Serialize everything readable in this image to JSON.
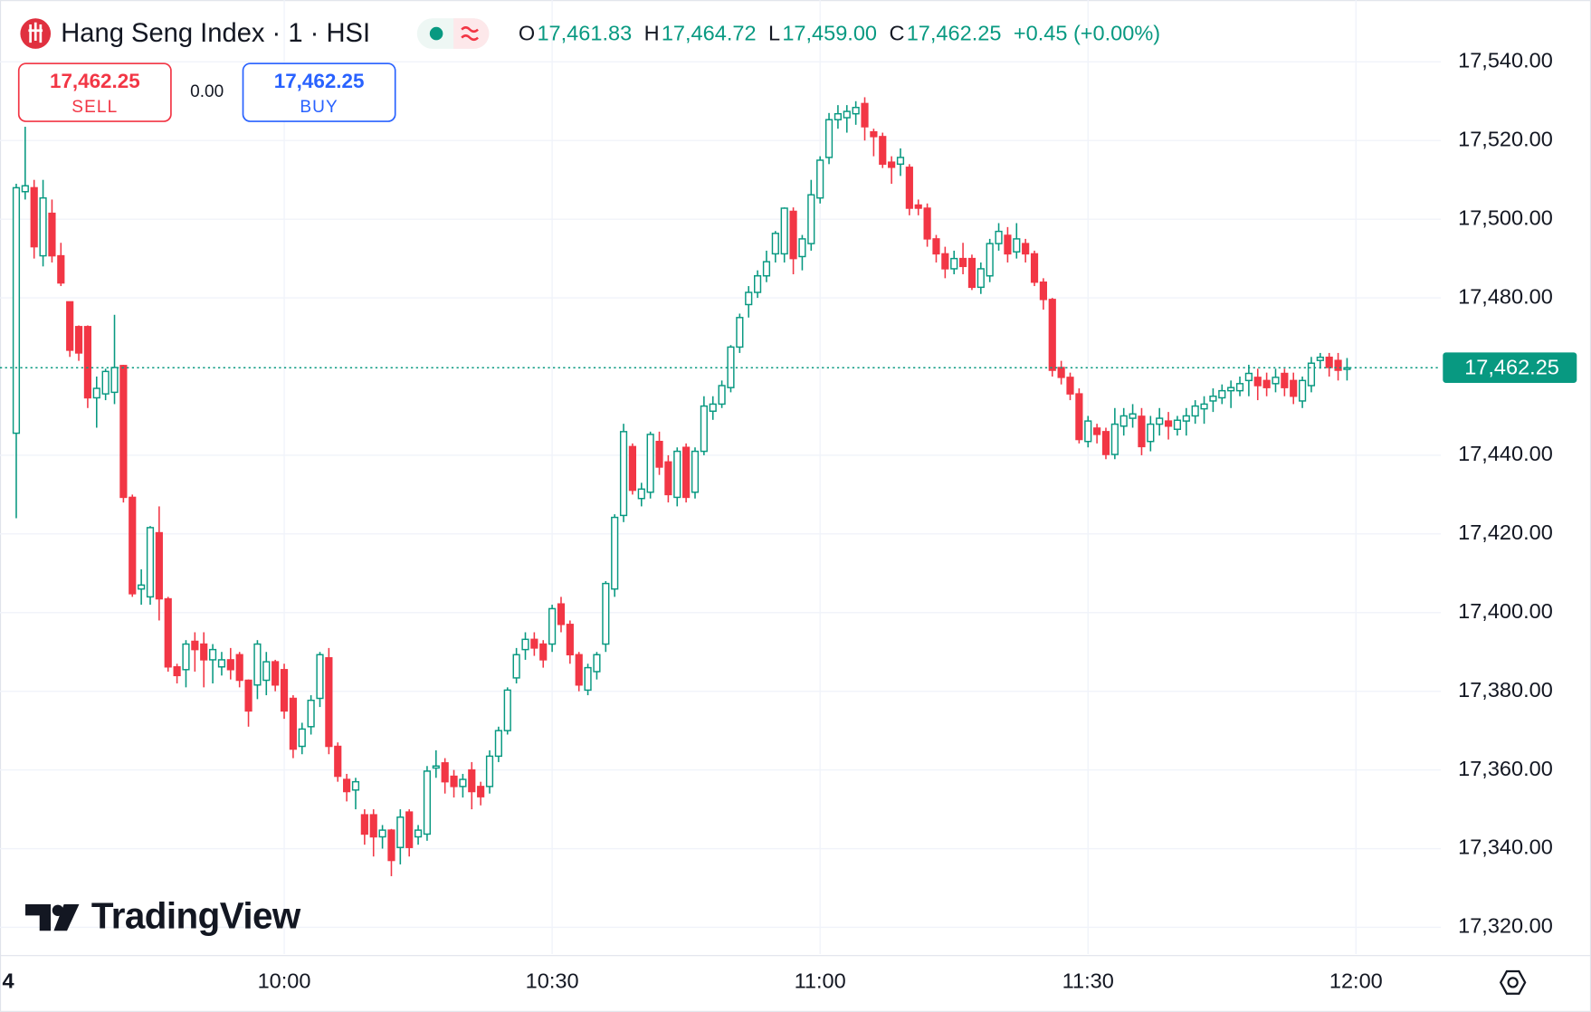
{
  "chart_data": {
    "type": "candlestick",
    "title": "Hang Seng Index · 1 · HSI",
    "ohlc": [
      {
        "key": "O",
        "value": "17,461.83"
      },
      {
        "key": "H",
        "value": "17,464.72"
      },
      {
        "key": "L",
        "value": "17,459.00"
      },
      {
        "key": "C",
        "value": "17,462.25"
      }
    ],
    "change": "+0.45 (+0.00%)",
    "sell": {
      "price": "17,462.25",
      "label": "SELL"
    },
    "spread": "0.00",
    "buy": {
      "price": "17,462.25",
      "label": "BUY"
    },
    "watermark": "TradingView",
    "up_color": "#089981",
    "down_color": "#f23645",
    "grid": true,
    "last_price": {
      "value": 17462.25,
      "label": "17,462.25"
    },
    "ylim": [
      17313.2,
      17555.7
    ],
    "yticks": [
      {
        "value": 17540,
        "label": "17,540.00"
      },
      {
        "value": 17520,
        "label": "17,520.00"
      },
      {
        "value": 17500,
        "label": "17,500.00"
      },
      {
        "value": 17480,
        "label": "17,480.00"
      },
      {
        "value": 17440,
        "label": "17,440.00"
      },
      {
        "value": 17420,
        "label": "17,420.00"
      },
      {
        "value": 17400,
        "label": "17,400.00"
      },
      {
        "value": 17380,
        "label": "17,380.00"
      },
      {
        "value": 17360,
        "label": "17,360.00"
      },
      {
        "value": 17340,
        "label": "17,340.00"
      },
      {
        "value": 17320,
        "label": "17,320.00"
      }
    ],
    "xlim": [
      -1.82,
      159.5
    ],
    "xticks": [
      {
        "value": -0.9,
        "label": "4"
      },
      {
        "value": 30,
        "label": "10:00"
      },
      {
        "value": 60,
        "label": "10:30"
      },
      {
        "value": 90,
        "label": "11:00"
      },
      {
        "value": 120,
        "label": "11:30"
      },
      {
        "value": 150,
        "label": "12:00"
      }
    ],
    "candles": [
      [
        17445.6,
        17509,
        17424,
        17508
      ],
      [
        17507,
        17523.5,
        17505,
        17508.5
      ],
      [
        17508,
        17510,
        17490,
        17493
      ],
      [
        17490.7,
        17510,
        17488,
        17505.4
      ],
      [
        17501.5,
        17505,
        17489,
        17490.7
      ],
      [
        17490.7,
        17494,
        17483,
        17483.8
      ],
      [
        17479,
        17479,
        17465,
        17466.7
      ],
      [
        17472.7,
        17473,
        17464,
        17466
      ],
      [
        17472.7,
        17473,
        17452,
        17454.6
      ],
      [
        17454.6,
        17460,
        17447,
        17457
      ],
      [
        17455.6,
        17462,
        17454,
        17461.3
      ],
      [
        17456,
        17475.7,
        17453,
        17462.3
      ],
      [
        17462.8,
        17463,
        17428,
        17429.3
      ],
      [
        17429.3,
        17430,
        17404,
        17404.8
      ],
      [
        17406,
        17411,
        17402,
        17407
      ],
      [
        17404,
        17422,
        17402,
        17421.6
      ],
      [
        17420.3,
        17427,
        17398,
        17403.5
      ],
      [
        17403.5,
        17404,
        17385,
        17386.2
      ],
      [
        17386.2,
        17387,
        17382,
        17384
      ],
      [
        17385.5,
        17393,
        17381,
        17392
      ],
      [
        17392.7,
        17395,
        17385,
        17390.6
      ],
      [
        17392,
        17395,
        17381,
        17388
      ],
      [
        17388,
        17392,
        17382,
        17390.6
      ],
      [
        17386.2,
        17390,
        17384,
        17388
      ],
      [
        17388,
        17391,
        17383,
        17385.5
      ],
      [
        17389.3,
        17390,
        17381,
        17382.8
      ],
      [
        17382.8,
        17383,
        17371,
        17375
      ],
      [
        17381.6,
        17393,
        17378,
        17392
      ],
      [
        17382.8,
        17390,
        17379,
        17387.5
      ],
      [
        17387.5,
        17388,
        17380,
        17381.6
      ],
      [
        17385.5,
        17387,
        17373,
        17375
      ],
      [
        17378.2,
        17379,
        17363,
        17365.3
      ],
      [
        17366,
        17372,
        17364,
        17370.4
      ],
      [
        17371,
        17379,
        17369,
        17377.7
      ],
      [
        17378.2,
        17390,
        17376,
        17389.3
      ],
      [
        17388.5,
        17391,
        17364,
        17366
      ],
      [
        17366,
        17367,
        17357,
        17358.4
      ],
      [
        17357.6,
        17359,
        17352,
        17354.5
      ],
      [
        17354.9,
        17358,
        17350,
        17357
      ],
      [
        17348.6,
        17350,
        17341,
        17343.7
      ],
      [
        17348.6,
        17350,
        17338,
        17343
      ],
      [
        17343,
        17346,
        17340,
        17344.7
      ],
      [
        17344.7,
        17345,
        17333,
        17337
      ],
      [
        17340.3,
        17350,
        17336,
        17348
      ],
      [
        17349.3,
        17350,
        17338,
        17340.3
      ],
      [
        17343,
        17346,
        17341,
        17344.7
      ],
      [
        17343.7,
        17361,
        17342,
        17359.7
      ],
      [
        17360.5,
        17365,
        17358,
        17361
      ],
      [
        17361.8,
        17363,
        17354,
        17357
      ],
      [
        17358.4,
        17360,
        17353,
        17355.8
      ],
      [
        17355.8,
        17359,
        17353,
        17357.6
      ],
      [
        17360,
        17362,
        17350,
        17354.5
      ],
      [
        17355.8,
        17357,
        17351,
        17353.2
      ],
      [
        17355.8,
        17365,
        17354,
        17363.5
      ],
      [
        17363.5,
        17371,
        17362,
        17370
      ],
      [
        17370,
        17381,
        17369,
        17380.3
      ],
      [
        17383.4,
        17391,
        17382,
        17389.3
      ],
      [
        17390.6,
        17395,
        17388,
        17393.2
      ],
      [
        17393.2,
        17395,
        17389,
        17391
      ],
      [
        17392,
        17393,
        17386,
        17388
      ],
      [
        17392,
        17402,
        17390,
        17401
      ],
      [
        17402.2,
        17404,
        17395,
        17397
      ],
      [
        17397,
        17398,
        17387,
        17389.3
      ],
      [
        17389.3,
        17390,
        17380,
        17381.6
      ],
      [
        17380.3,
        17387,
        17379,
        17386
      ],
      [
        17385,
        17390,
        17383,
        17389.3
      ],
      [
        17392,
        17408,
        17390,
        17407.4
      ],
      [
        17406,
        17425,
        17404,
        17424.2
      ],
      [
        17424.7,
        17448,
        17423,
        17446
      ],
      [
        17442.2,
        17443,
        17430,
        17431.1
      ],
      [
        17429,
        17433,
        17427,
        17431.4
      ],
      [
        17430.6,
        17446,
        17429,
        17445.3
      ],
      [
        17443.5,
        17446,
        17435,
        17437
      ],
      [
        17438.3,
        17440,
        17428,
        17430
      ],
      [
        17429.3,
        17442,
        17427,
        17441
      ],
      [
        17442,
        17443,
        17428,
        17429.3
      ],
      [
        17430.6,
        17442,
        17429,
        17441
      ],
      [
        17441,
        17455,
        17440,
        17452.5
      ],
      [
        17451.2,
        17455,
        17449,
        17453
      ],
      [
        17453,
        17459,
        17452,
        17457.7
      ],
      [
        17457.2,
        17468,
        17456,
        17467.5
      ],
      [
        17467.5,
        17476,
        17466,
        17475
      ],
      [
        17478.3,
        17483,
        17475,
        17481.4
      ],
      [
        17481.4,
        17487,
        17480,
        17485.6
      ],
      [
        17485.6,
        17492,
        17484,
        17489.2
      ],
      [
        17491.2,
        17497,
        17489,
        17496.4
      ],
      [
        17491.2,
        17503,
        17489,
        17502.8
      ],
      [
        17502,
        17503,
        17486,
        17490
      ],
      [
        17490.5,
        17496,
        17487,
        17495
      ],
      [
        17493.8,
        17510,
        17492,
        17506.2
      ],
      [
        17505.4,
        17516,
        17504,
        17515
      ],
      [
        17515.7,
        17527,
        17514,
        17525.3
      ],
      [
        17525.3,
        17529,
        17523,
        17526.8
      ],
      [
        17525.8,
        17529,
        17522,
        17527.4
      ],
      [
        17526.8,
        17530,
        17524,
        17528.4
      ],
      [
        17529.4,
        17531,
        17520,
        17523.5
      ],
      [
        17522.2,
        17523,
        17516,
        17521
      ],
      [
        17521,
        17522,
        17513,
        17514
      ],
      [
        17514.5,
        17516,
        17509,
        17513.2
      ],
      [
        17514,
        17518,
        17511,
        17515.7
      ],
      [
        17513.2,
        17514,
        17501,
        17502.8
      ],
      [
        17503.6,
        17505,
        17501,
        17502.8
      ],
      [
        17502.8,
        17504,
        17493,
        17495
      ],
      [
        17495,
        17496,
        17489,
        17491.2
      ],
      [
        17491.2,
        17493,
        17485,
        17487.4
      ],
      [
        17487.4,
        17492,
        17486,
        17490
      ],
      [
        17490,
        17494,
        17486,
        17488
      ],
      [
        17490,
        17491,
        17482,
        17482.7
      ],
      [
        17482.7,
        17489,
        17481,
        17487.4
      ],
      [
        17485.6,
        17495,
        17484,
        17493.8
      ],
      [
        17493.8,
        17499,
        17492,
        17496.9
      ],
      [
        17495.9,
        17498,
        17489,
        17491.2
      ],
      [
        17491.7,
        17499,
        17490,
        17495
      ],
      [
        17493.8,
        17495,
        17489,
        17491.2
      ],
      [
        17491.2,
        17492,
        17483,
        17484
      ],
      [
        17484,
        17485,
        17477,
        17479.6
      ],
      [
        17479.6,
        17480,
        17460,
        17461.6
      ],
      [
        17462.3,
        17464,
        17458,
        17459.8
      ],
      [
        17459.8,
        17461,
        17454,
        17455.6
      ],
      [
        17455.6,
        17457,
        17443,
        17444
      ],
      [
        17443.5,
        17450,
        17442,
        17448.7
      ],
      [
        17446.9,
        17448,
        17443,
        17445.3
      ],
      [
        17446,
        17447,
        17439,
        17440.2
      ],
      [
        17440.2,
        17452,
        17439,
        17447.9
      ],
      [
        17447.4,
        17452,
        17445,
        17450
      ],
      [
        17449.4,
        17453,
        17447,
        17450.5
      ],
      [
        17449.9,
        17452,
        17440,
        17442.2
      ],
      [
        17443.5,
        17450,
        17441,
        17447.9
      ],
      [
        17447.9,
        17452,
        17445,
        17449.4
      ],
      [
        17448.7,
        17451,
        17444,
        17447.4
      ],
      [
        17446.6,
        17450,
        17445,
        17448.9
      ],
      [
        17448.7,
        17452,
        17445,
        17450
      ],
      [
        17450,
        17454,
        17448,
        17452.5
      ],
      [
        17451.8,
        17455,
        17448,
        17453
      ],
      [
        17453.8,
        17457,
        17451,
        17455
      ],
      [
        17454.6,
        17458,
        17453,
        17456.4
      ],
      [
        17456.4,
        17459,
        17452,
        17457.2
      ],
      [
        17456.4,
        17460,
        17455,
        17458.2
      ],
      [
        17459,
        17463,
        17455,
        17460.8
      ],
      [
        17459.8,
        17462,
        17454,
        17457.7
      ],
      [
        17459,
        17461,
        17455,
        17457.2
      ],
      [
        17458.2,
        17462,
        17456,
        17459.8
      ],
      [
        17460.8,
        17462,
        17455,
        17457.2
      ],
      [
        17459,
        17461,
        17453,
        17455
      ],
      [
        17453.8,
        17460,
        17452,
        17459
      ],
      [
        17457.7,
        17465,
        17456,
        17463.4
      ],
      [
        17464.1,
        17466,
        17462,
        17464.9
      ],
      [
        17464.9,
        17466,
        17460,
        17462.3
      ],
      [
        17464.1,
        17466,
        17459,
        17461.6
      ],
      [
        17461.83,
        17464.72,
        17459,
        17462.25
      ]
    ]
  }
}
